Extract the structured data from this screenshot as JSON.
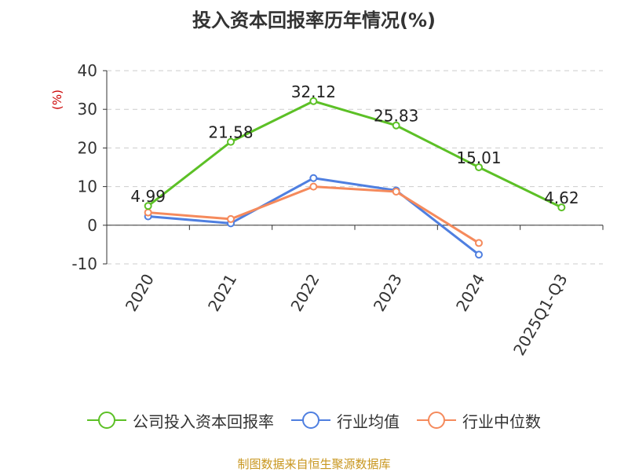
{
  "chart_data": {
    "type": "line",
    "title": "投入资本回报率历年情况(%)",
    "ylabel": "(%)",
    "categories": [
      "2020",
      "2021",
      "2022",
      "2023",
      "2024",
      "2025Q1-Q3"
    ],
    "ylim": [
      -10,
      40
    ],
    "yticks": [
      "40",
      "30",
      "20",
      "10",
      "0",
      "-10"
    ],
    "grid": true,
    "legend_position": "bottom",
    "series": [
      {
        "name": "公司投入资本回报率",
        "color": "#5cc026",
        "values": [
          4.99,
          21.58,
          32.12,
          25.83,
          15.01,
          4.62
        ],
        "labels": [
          "4.99",
          "21.58",
          "32.12",
          "25.83",
          "15.01",
          "4.62"
        ]
      },
      {
        "name": "行业均值",
        "color": "#4f7fe0",
        "values": [
          2.3,
          0.5,
          12.2,
          9.0,
          -7.6,
          null
        ]
      },
      {
        "name": "行业中位数",
        "color": "#f58a5c",
        "values": [
          3.3,
          1.6,
          10.0,
          8.7,
          -4.6,
          null
        ]
      }
    ],
    "source": "制图数据来自恒生聚源数据库"
  }
}
